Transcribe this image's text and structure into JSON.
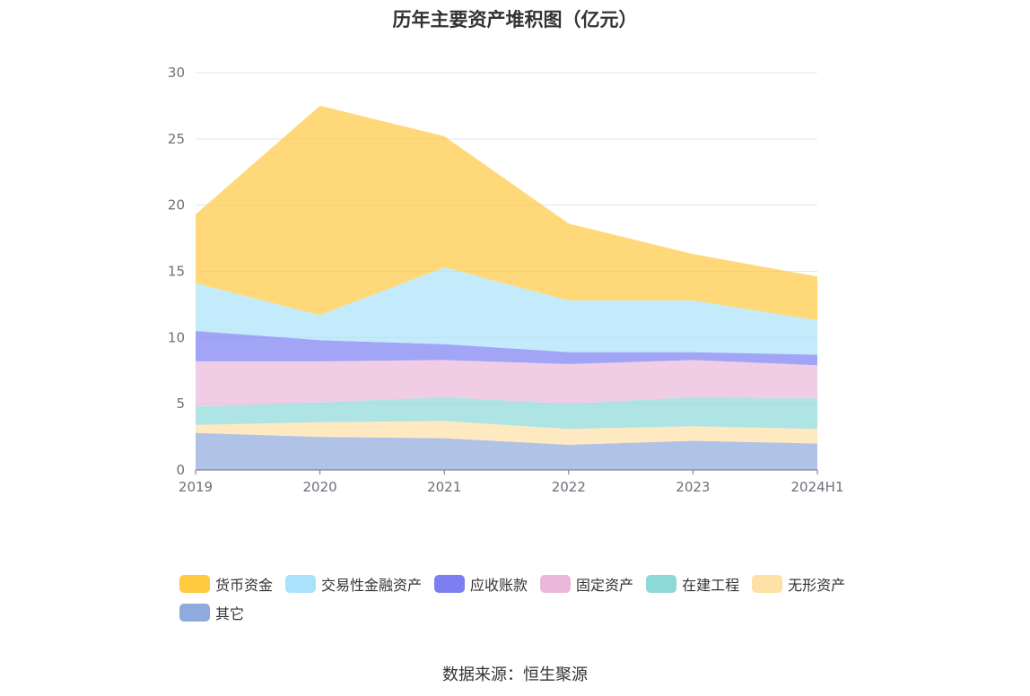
{
  "chart_data": {
    "type": "area",
    "stacked": true,
    "title": "历年主要资产堆积图（亿元）",
    "categories": [
      "2019",
      "2020",
      "2021",
      "2022",
      "2023",
      "2024H1"
    ],
    "ylim": [
      0,
      30
    ],
    "yticks": [
      0,
      5,
      10,
      15,
      20,
      25,
      30
    ],
    "grid": true,
    "legend_position": "bottom",
    "series": [
      {
        "name": "其它",
        "color": "#8faadc",
        "values": [
          2.8,
          2.5,
          2.4,
          1.9,
          2.2,
          2.0
        ]
      },
      {
        "name": "无形资产",
        "color": "#ffe0a6",
        "values": [
          0.6,
          1.1,
          1.3,
          1.2,
          1.1,
          1.1
        ]
      },
      {
        "name": "在建工程",
        "color": "#8dd8d8",
        "values": [
          1.4,
          1.5,
          1.8,
          1.9,
          2.2,
          2.3
        ]
      },
      {
        "name": "固定资产",
        "color": "#eab8d9",
        "values": [
          3.4,
          3.1,
          2.8,
          3.0,
          2.8,
          2.5
        ]
      },
      {
        "name": "应收账款",
        "color": "#7b7ff2",
        "values": [
          2.3,
          1.6,
          1.2,
          0.9,
          0.6,
          0.8
        ]
      },
      {
        "name": "交易性金融资产",
        "color": "#a9e2fa",
        "values": [
          3.6,
          1.9,
          5.8,
          3.9,
          3.9,
          2.6
        ]
      },
      {
        "name": "货币资金",
        "color": "#ffc940",
        "values": [
          5.2,
          15.8,
          9.9,
          5.8,
          3.5,
          3.3
        ]
      }
    ],
    "legend_order": [
      "货币资金",
      "交易性金融资产",
      "应收账款",
      "固定资产",
      "在建工程",
      "无形资产",
      "其它"
    ]
  },
  "source_text": "数据来源：恒生聚源"
}
